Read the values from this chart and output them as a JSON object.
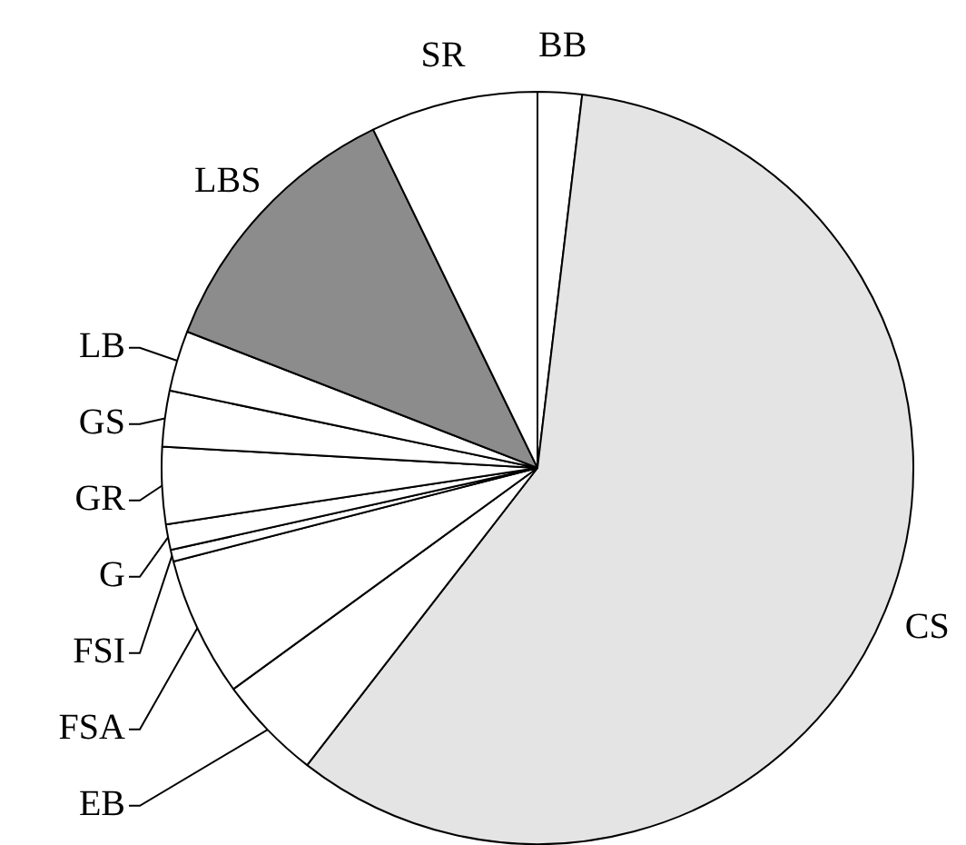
{
  "chart_data": {
    "type": "pie",
    "categories": [
      "BB",
      "CS",
      "EB",
      "FSA",
      "FSI",
      "G",
      "GR",
      "GS",
      "LB",
      "LBS",
      "SR"
    ],
    "values": [
      1.9,
      58.6,
      4.5,
      6.0,
      0.5,
      1.1,
      3.3,
      2.4,
      2.6,
      11.9,
      7.2
    ],
    "colors": [
      "#ffffff",
      "#e4e4e4",
      "#ffffff",
      "#ffffff",
      "#ffffff",
      "#ffffff",
      "#ffffff",
      "#ffffff",
      "#ffffff",
      "#8c8c8c",
      "#ffffff"
    ],
    "legend": false
  }
}
